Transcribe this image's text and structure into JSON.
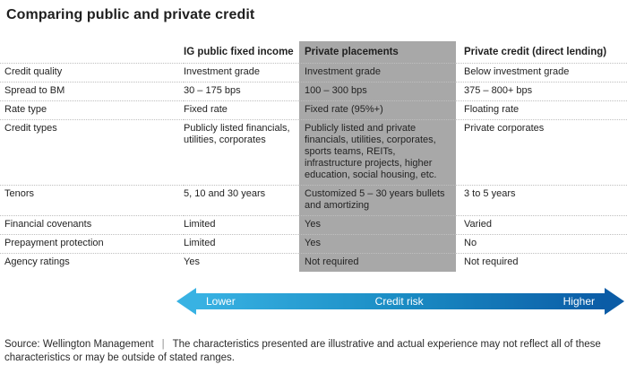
{
  "title": "Comparing public and private credit",
  "table": {
    "columns": [
      "",
      "IG public fixed income",
      "Private placements",
      "Private credit (direct lending)"
    ],
    "rows": [
      {
        "label": "Credit quality",
        "ig": "Investment grade",
        "pp": "Investment grade",
        "pc": "Below investment grade"
      },
      {
        "label": "Spread to BM",
        "ig": "30 – 175 bps",
        "pp": "100 – 300 bps",
        "pc": "375 – 800+ bps"
      },
      {
        "label": "Rate type",
        "ig": "Fixed rate",
        "pp": "Fixed rate (95%+)",
        "pc": "Floating rate"
      },
      {
        "label": "Credit types",
        "ig": "Publicly listed financials, utilities, corporates",
        "pp": "Publicly listed and private financials, utilities, corporates, sports teams, REITs, infrastructure projects, higher education, social housing, etc.",
        "pc": "Private corporates"
      },
      {
        "label": "Tenors",
        "ig": "5, 10 and 30 years",
        "pp": "Customized 5 – 30 years bullets and amortizing",
        "pc": "3 to 5 years"
      },
      {
        "label": "Financial covenants",
        "ig": "Limited",
        "pp": "Yes",
        "pc": "Varied"
      },
      {
        "label": "Prepayment protection",
        "ig": "Limited",
        "pp": "Yes",
        "pc": "No"
      },
      {
        "label": "Agency ratings",
        "ig": "Yes",
        "pp": "Not required",
        "pc": "Not required"
      }
    ]
  },
  "risk_arrow": {
    "left_label": "Lower",
    "center_label": "Credit risk",
    "right_label": "Higher",
    "gradient_start": "#38b2e3",
    "gradient_end": "#0b5ca6"
  },
  "footer": {
    "source": "Source: Wellington Management",
    "separator": "|",
    "disclaimer": "The characteristics presented are illustrative and actual experience may not reflect all of these characteristics or may be outside of stated ranges."
  },
  "colors": {
    "highlight_column_bg": "#a8a8a8",
    "divider": "#bfbfbf",
    "text": "#232323"
  }
}
